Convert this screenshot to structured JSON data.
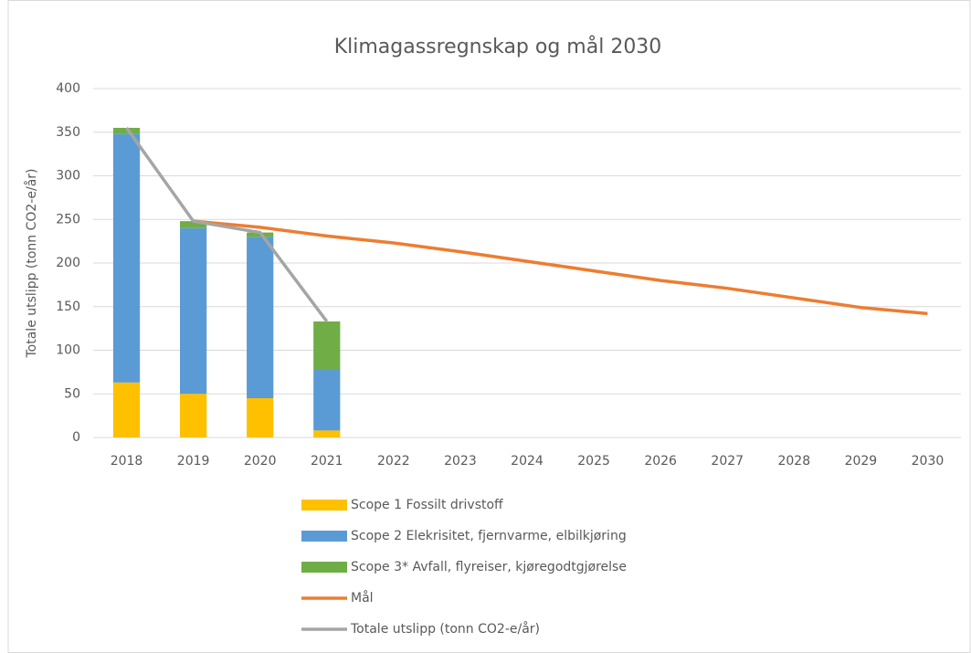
{
  "chart_data": {
    "type": "combo",
    "title": "Klimagassregnskap og mål 2030",
    "y_label": "Totale utslipp (tonn CO2-e/år)",
    "categories": [
      "2018",
      "2019",
      "2020",
      "2021",
      "2022",
      "2023",
      "2024",
      "2025",
      "2026",
      "2027",
      "2028",
      "2029",
      "2030"
    ],
    "series": [
      {
        "name": "Scope 1 Fossilt drivstoff",
        "kind": "bar",
        "color": "#ffc000",
        "values": [
          63,
          50,
          45,
          8,
          null,
          null,
          null,
          null,
          null,
          null,
          null,
          null,
          null
        ]
      },
      {
        "name": "Scope 2 Elekrisitet, fjernvarme, elbilkjøring",
        "kind": "bar",
        "color": "#5b9bd5",
        "values": [
          285,
          190,
          185,
          70,
          null,
          null,
          null,
          null,
          null,
          null,
          null,
          null,
          null
        ]
      },
      {
        "name": "Scope 3* Avfall, flyreiser, kjøregodtgjørelse",
        "kind": "bar",
        "color": "#70ad47",
        "values": [
          7,
          8,
          5,
          55,
          null,
          null,
          null,
          null,
          null,
          null,
          null,
          null,
          null
        ]
      },
      {
        "name": "Mål",
        "kind": "line",
        "color": "#ed7d31",
        "values": [
          null,
          248,
          241,
          231,
          223,
          213,
          202,
          191,
          180,
          171,
          160,
          149,
          142
        ]
      },
      {
        "name": "Totale utslipp (tonn CO2-e/år)",
        "kind": "line",
        "color": "#a5a5a5",
        "values": [
          355,
          248,
          235,
          133,
          null,
          null,
          null,
          null,
          null,
          null,
          null,
          null,
          null
        ]
      }
    ],
    "ylim": [
      0,
      400
    ],
    "yticks": [
      0,
      50,
      100,
      150,
      200,
      250,
      300,
      350,
      400
    ],
    "grid": true,
    "legend": "bottom"
  }
}
